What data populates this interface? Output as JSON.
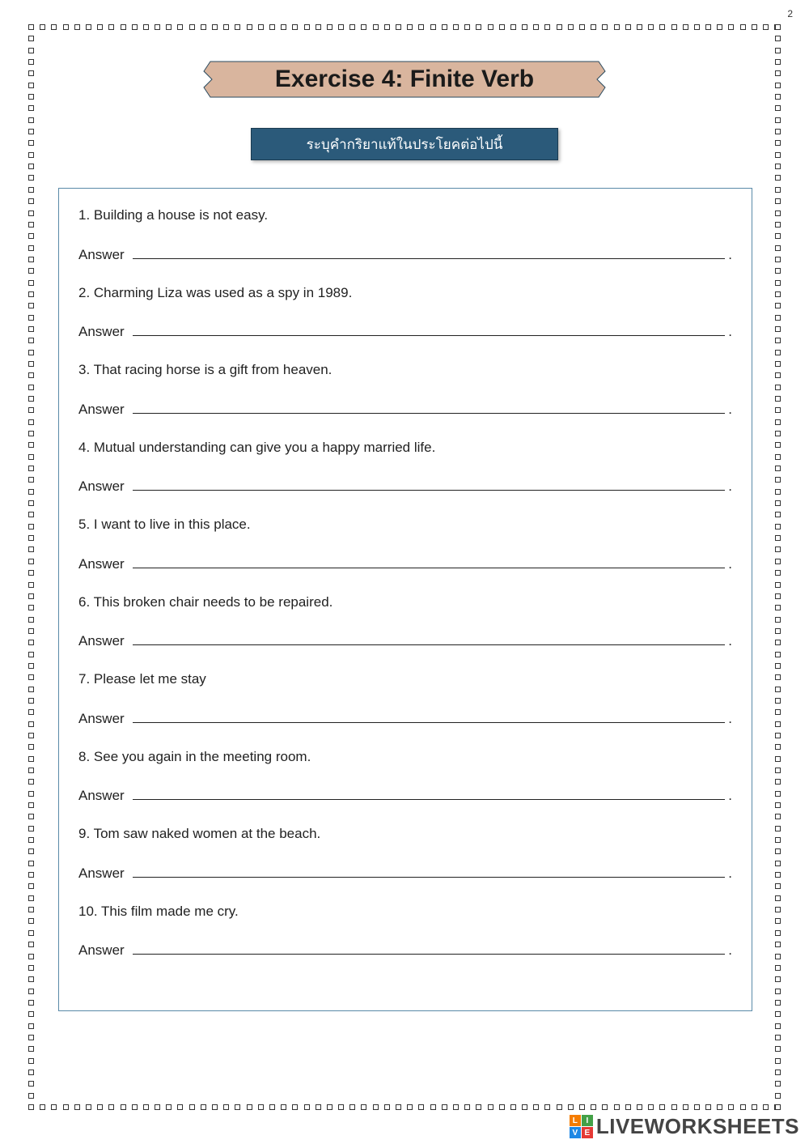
{
  "page_number": "2",
  "title": "Exercise 4: Finite Verb",
  "subtitle": "ระบุคำกริยาแท้ในประโยคต่อไปนี้",
  "answer_label": "Answer",
  "questions": [
    "1. Building a house is not easy.",
    "2. Charming Liza was used as a spy in 1989.",
    "3. That racing horse is a gift from heaven.",
    "4. Mutual understanding can give you a happy married life.",
    "5. I want to live in this place.",
    "6. This broken chair needs to be repaired.",
    "7. Please let me stay",
    "8. See you again in the meeting room.",
    "9. Tom saw naked women at the beach.",
    "10. This film made me cry."
  ],
  "border": {
    "square_fill": "#ffffff",
    "square_stroke": "#333333",
    "squares_horizontal": 66,
    "squares_vertical": 94
  },
  "banner": {
    "fill": "#d9b59e",
    "stroke": "#2a4a5f",
    "title_color": "#1a1a1a",
    "title_fontsize": 30
  },
  "subtitle_box": {
    "bg": "#2b5a7a",
    "border": "#1a3a50",
    "text_color": "#ffffff",
    "fontsize": 17
  },
  "content_box": {
    "border_color": "#5a8aa8",
    "bg": "#ffffff",
    "text_color": "#222222",
    "fontsize": 17
  },
  "watermark": {
    "text": "LIVEWORKSHEETS",
    "logo_cells": [
      {
        "t": "L",
        "bg": "#f57c00"
      },
      {
        "t": "I",
        "bg": "#43a047"
      },
      {
        "t": "V",
        "bg": "#1e88e5"
      },
      {
        "t": "E",
        "bg": "#e53935"
      }
    ],
    "text_color": "#444444",
    "fontsize": 26
  }
}
